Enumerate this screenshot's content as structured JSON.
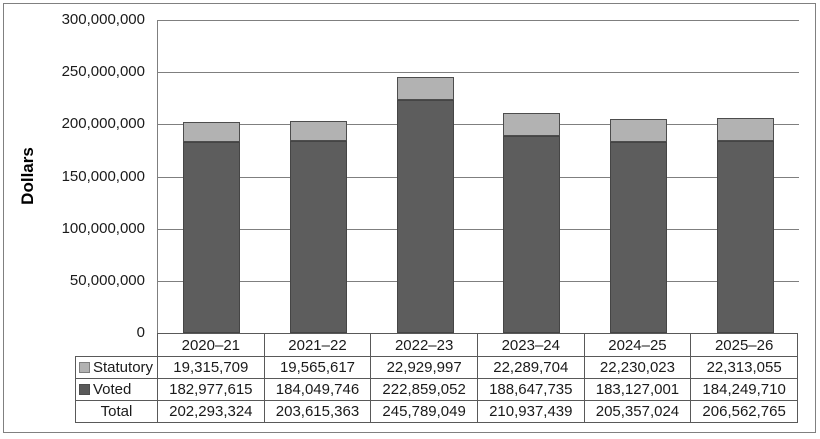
{
  "chart_data": {
    "type": "bar",
    "stacked": true,
    "title": "",
    "xlabel": "",
    "ylabel": "Dollars",
    "ylim": [
      0,
      300000000
    ],
    "ytick_step": 50000000,
    "ytick_labels": [
      "0",
      "50,000,000",
      "100,000,000",
      "150,000,000",
      "200,000,000",
      "250,000,000",
      "300,000,000"
    ],
    "grid": true,
    "legend_position": "table-row-labels",
    "categories": [
      "2020–21",
      "2021–22",
      "2022–23",
      "2023–24",
      "2024–25",
      "2025–26"
    ],
    "series": [
      {
        "name": "Statutory",
        "values": [
          19315709,
          19565617,
          22929997,
          22289704,
          22230023,
          22313055
        ],
        "color": "#b2b2b2",
        "border_color": "#4d4d4d",
        "swatch_fill": "#b2b2b2",
        "swatch_border": "#7f7f7f"
      },
      {
        "name": "Voted",
        "values": [
          182977615,
          184049746,
          222859052,
          188647735,
          183127001,
          184249710
        ],
        "color": "#5d5d5d",
        "border_color": "#454545",
        "swatch_fill": "#595959",
        "swatch_border": "#4d4d4d"
      }
    ],
    "totals": {
      "label": "Total",
      "values": [
        202293324,
        203615363,
        245789049,
        210937439,
        205357024,
        206562765
      ]
    },
    "data_table": {
      "header_cells": [
        "2020–21",
        "2021–22",
        "2022–23",
        "2023–24",
        "2024–25",
        "2025–26"
      ],
      "rows": [
        {
          "label": "Statutory",
          "swatch": "Statutory",
          "cells": [
            "19,315,709",
            "19,565,617",
            "22,929,997",
            "22,289,704",
            "22,230,023",
            "22,313,055"
          ]
        },
        {
          "label": "Voted",
          "swatch": "Voted",
          "cells": [
            "182,977,615",
            "184,049,746",
            "222,859,052",
            "188,647,735",
            "183,127,001",
            "184,249,710"
          ]
        },
        {
          "label": "Total",
          "swatch": null,
          "cells": [
            "202,293,324",
            "203,615,363",
            "245,789,049",
            "210,937,439",
            "205,357,024",
            "206,562,765"
          ]
        }
      ]
    }
  },
  "colors": {
    "grid_line": "#7f7f7f",
    "axis_line": "#7f7f7f",
    "table_border": "#595959",
    "frame_border": "#808080",
    "text": "#1a1a1a",
    "background": "#ffffff"
  }
}
